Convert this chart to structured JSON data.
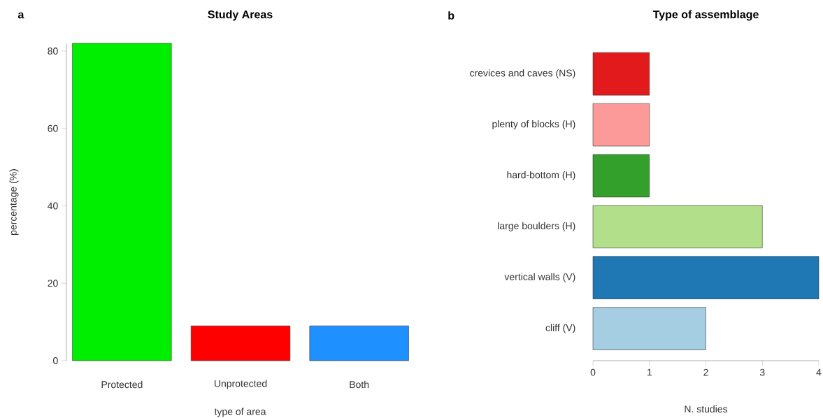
{
  "chart_data": [
    {
      "type": "bar",
      "title": "Study Areas",
      "xlabel": "type of area",
      "ylabel": "percentage (%)",
      "annotations": [
        "a"
      ],
      "categories": [
        "Protected",
        "Unprotected",
        "Both"
      ],
      "values": [
        82,
        9,
        9
      ],
      "colors": [
        "#00ee00",
        "#ff0000",
        "#1e90ff"
      ],
      "ylim": [
        0,
        82
      ],
      "yticks": [
        0,
        20,
        40,
        60,
        80
      ]
    },
    {
      "type": "bar",
      "orientation": "horizontal",
      "title": "Type of assemblage",
      "xlabel": "N. studies",
      "annotations": [
        "b"
      ],
      "categories": [
        "crevices and caves (NS)",
        "plenty of blocks (H)",
        "hard-bottom (H)",
        "large boulders (H)",
        "vertical walls (V)",
        "cliff (V)"
      ],
      "values": [
        1,
        1,
        1,
        3,
        4,
        2
      ],
      "colors": [
        "#e31a1c",
        "#fb9a99",
        "#33a02c",
        "#b2df8a",
        "#1f78b4",
        "#a6cee3"
      ],
      "xlim": [
        0,
        4
      ],
      "xticks": [
        0,
        1,
        2,
        3,
        4
      ]
    }
  ]
}
